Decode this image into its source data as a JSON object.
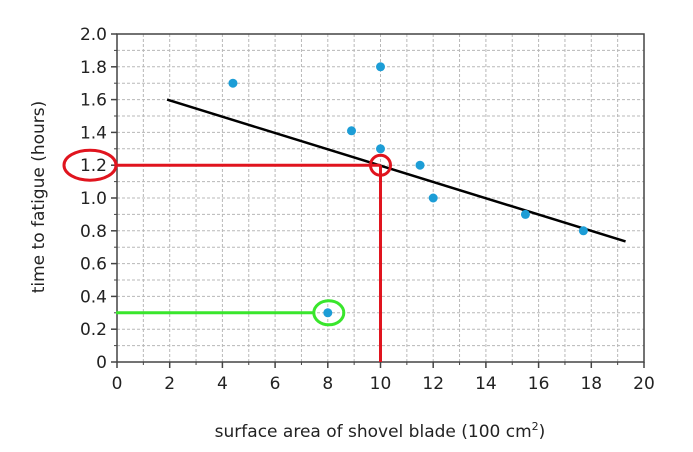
{
  "chart_data": {
    "type": "scatter",
    "title": "",
    "xlabel": "surface area of shovel blade (100 cm",
    "xlabel_superscript": "2",
    "xlabel_suffix": ")",
    "ylabel": "time to fatigue (hours)",
    "xlim": [
      0,
      20
    ],
    "ylim": [
      0,
      2.0
    ],
    "grid": true,
    "x_ticks": [
      0,
      2,
      4,
      6,
      8,
      10,
      12,
      14,
      16,
      18,
      20
    ],
    "x_tick_labels": [
      "0",
      "2",
      "4",
      "6",
      "8",
      "10",
      "12",
      "14",
      "16",
      "18",
      "20"
    ],
    "y_ticks": [
      0,
      0.2,
      0.4,
      0.6,
      0.8,
      1.0,
      1.2,
      1.4,
      1.6,
      1.8,
      2.0
    ],
    "y_tick_labels": [
      "0",
      "0.2",
      "0.4",
      "0.6",
      "0.8",
      "1.0",
      "1.2",
      "1.4",
      "1.6",
      "1.8",
      "2.0"
    ],
    "points": [
      {
        "x": 4.4,
        "y": 1.7
      },
      {
        "x": 8.0,
        "y": 0.3
      },
      {
        "x": 8.9,
        "y": 1.41
      },
      {
        "x": 10.0,
        "y": 1.8
      },
      {
        "x": 10.0,
        "y": 1.3
      },
      {
        "x": 11.5,
        "y": 1.2
      },
      {
        "x": 12.0,
        "y": 1.0
      },
      {
        "x": 15.5,
        "y": 0.9
      },
      {
        "x": 17.7,
        "y": 0.8
      }
    ],
    "trend_line": {
      "x1": 1.9,
      "y1": 1.6,
      "x2": 19.3,
      "y2": 0.735
    },
    "annotations": {
      "red_guide": {
        "x": 10,
        "y": 1.2
      },
      "green_guide": {
        "x": 8,
        "y": 0.3
      }
    },
    "colors": {
      "points": "#1c9dd6",
      "trend_line": "#000000",
      "red": "#e0141e",
      "green": "#39e62c",
      "grid": "#b8b8b8"
    }
  }
}
